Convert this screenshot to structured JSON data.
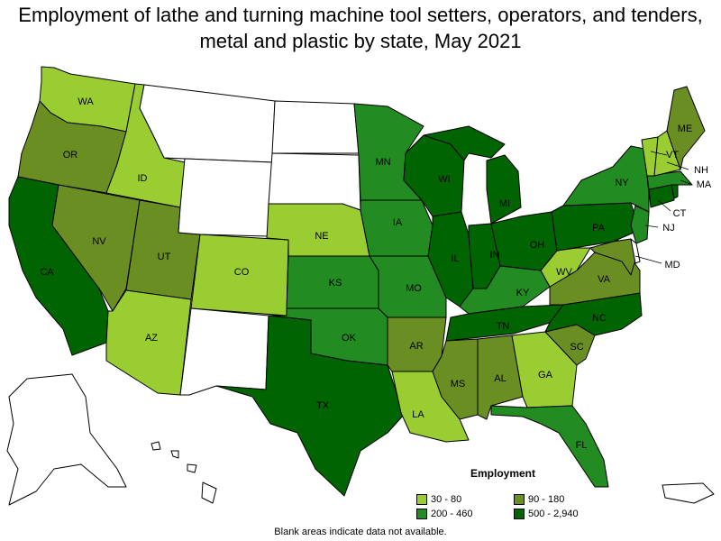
{
  "title": "Employment of lathe and turning machine tool setters, operators, and tenders, metal and plastic by state, May 2021",
  "colors": {
    "light": "#9acd32",
    "mid_olive": "#6b8e23",
    "mid_green": "#228b22",
    "dark": "#006400",
    "none": "#ffffff"
  },
  "legend": {
    "title": "Employment",
    "items": [
      {
        "label": "30 - 80",
        "color": "#9acd32"
      },
      {
        "label": "90 - 180",
        "color": "#6b8e23"
      },
      {
        "label": "200 - 460",
        "color": "#228b22"
      },
      {
        "label": "500 - 2,940",
        "color": "#006400"
      }
    ]
  },
  "footnote": "Blank areas indicate data not available.",
  "states": {
    "WA": "WA",
    "OR": "OR",
    "CA": "CA",
    "ID": "ID",
    "NV": "NV",
    "UT": "UT",
    "AZ": "AZ",
    "CO": "CO",
    "NE": "NE",
    "KS": "KS",
    "OK": "OK",
    "TX": "TX",
    "MN": "MN",
    "IA": "IA",
    "MO": "MO",
    "AR": "AR",
    "LA": "LA",
    "WI": "WI",
    "IL": "IL",
    "MI": "MI",
    "IN": "IN",
    "OH": "OH",
    "KY": "KY",
    "TN": "TN",
    "MS": "MS",
    "AL": "AL",
    "GA": "GA",
    "FL": "FL",
    "SC": "SC",
    "NC": "NC",
    "VA": "VA",
    "WV": "WV",
    "PA": "PA",
    "NY": "NY",
    "ME": "ME",
    "VT": "VT",
    "NH": "NH",
    "MA": "MA",
    "CT": "CT",
    "NJ": "NJ",
    "MD": "MD"
  }
}
